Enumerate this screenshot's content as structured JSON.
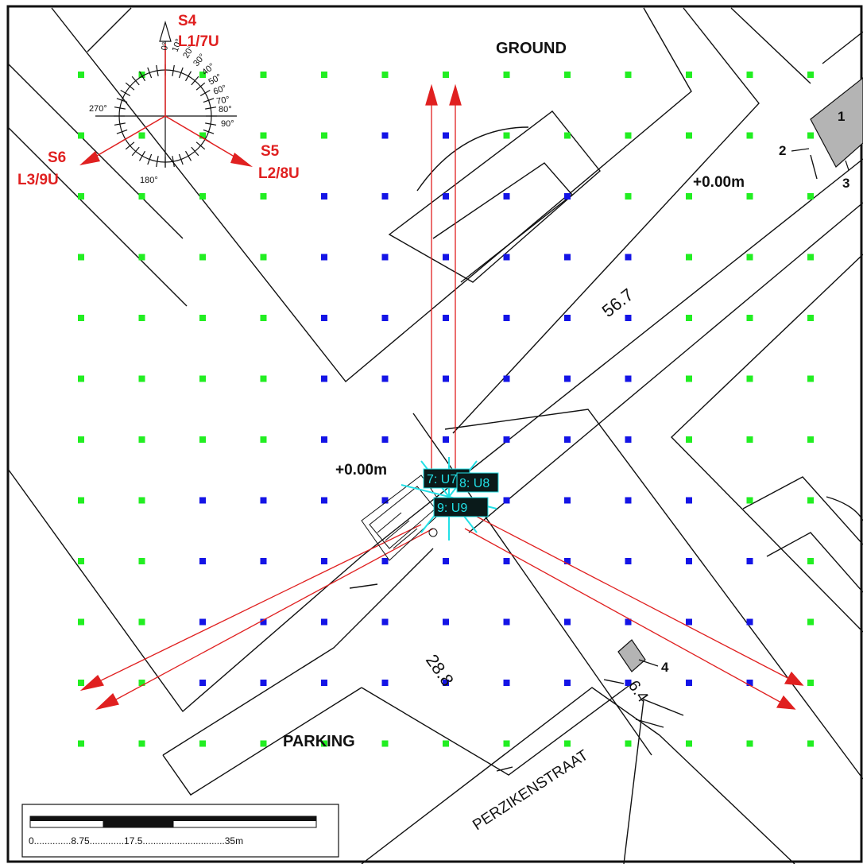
{
  "colors": {
    "outline": "#111111",
    "sight_line": "#e02020",
    "source_label": "#e02020",
    "grid_inside": "#1414e6",
    "grid_outside": "#22ee22",
    "receiver_label": "#22e0e6",
    "receiver_fill": "#0a1a1a",
    "building_fill": "#b4b4b4"
  },
  "labels": {
    "ground": "GROUND",
    "parking": "PARKING",
    "street": "PERZIKENSTRAAT",
    "elev_top": "+0.00m",
    "elev_center": "+0.00m"
  },
  "dimensions": {
    "d1": "56.7",
    "d2": "28.8",
    "d3": "6.4"
  },
  "building_markers": [
    "1",
    "2",
    "3",
    "4"
  ],
  "compass": {
    "ticks": [
      "0°",
      "10°",
      "20°",
      "30°",
      "40°",
      "50°",
      "60°",
      "70°",
      "80°",
      "90°",
      "180°",
      "270°"
    ],
    "icon": "compass-rose-icon"
  },
  "sources": [
    {
      "id": "S4",
      "lines": "L1/7U"
    },
    {
      "id": "S5",
      "lines": "L2/8U"
    },
    {
      "id": "S6",
      "lines": "L3/9U"
    }
  ],
  "receivers": [
    {
      "label": "7: U7"
    },
    {
      "label": "8: U8"
    },
    {
      "label": "9: U9"
    }
  ],
  "scale_bar": {
    "text": "0..............8.75.............17.5...............................35m"
  },
  "grid_points": {
    "rows": 12,
    "cols": 13,
    "note_inside": "blue points lie inside the evaluation area",
    "inside_mask": [
      "0000000000000",
      "0000011000000",
      "0000111110000",
      "0000111111000",
      "0000111111000",
      "0000111111000",
      "0000111111000",
      "0011111111100",
      "0011111111110",
      "0011111111110",
      "0011111111110",
      "0000000000000"
    ]
  }
}
